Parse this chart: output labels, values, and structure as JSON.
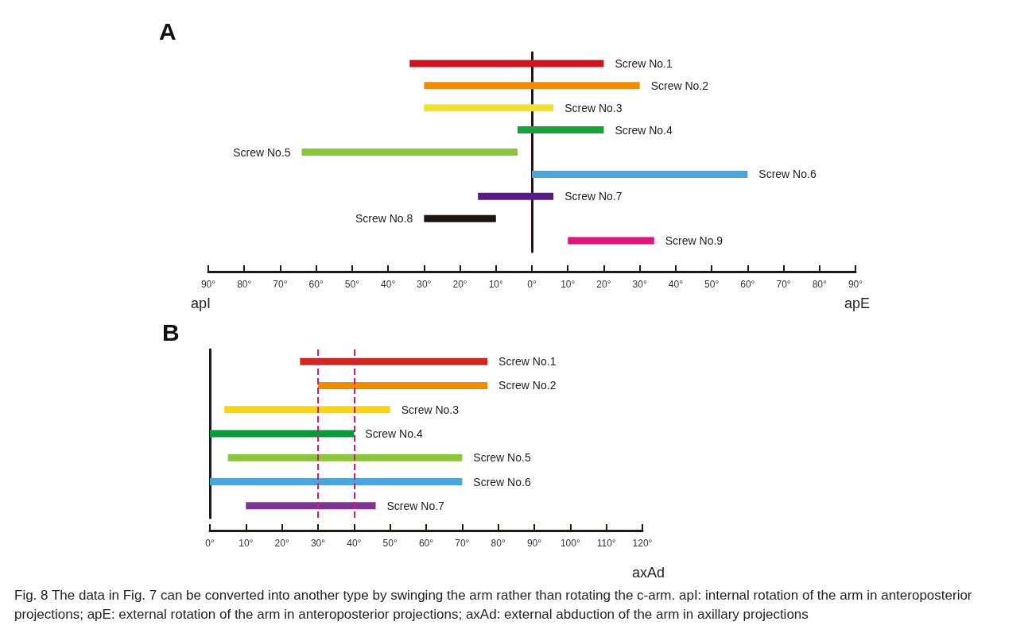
{
  "chart_data": [
    {
      "type": "bar",
      "title": "A",
      "orientation": "horizontal",
      "xlabel": "apE",
      "annotations": [
        "apI"
      ],
      "categories": [
        "Screw No.1",
        "Screw No.2",
        "Screw No.3",
        "Screw No.4",
        "Screw No.5",
        "Screw No.6",
        "Screw No.7",
        "Screw No.8",
        "Screw No.9"
      ],
      "base": [
        -34,
        -30,
        -30,
        -4,
        -64,
        0,
        -15,
        -30,
        10
      ],
      "values": [
        54,
        60,
        36,
        24,
        60,
        60,
        21,
        20,
        24
      ],
      "colors": [
        "#c8171e",
        "#ef8c00",
        "#f0e030",
        "#1aa23a",
        "#8cc43c",
        "#4ba6d8",
        "#5a1a84",
        "#1e1410",
        "#e0147a"
      ],
      "xlim": [
        -90,
        90
      ],
      "xticks": [
        {
          "value": -90,
          "label": "90°"
        },
        {
          "value": -80,
          "label": "80°"
        },
        {
          "value": -70,
          "label": "70°"
        },
        {
          "value": -60,
          "label": "60°"
        },
        {
          "value": -50,
          "label": "50°"
        },
        {
          "value": -40,
          "label": "40°"
        },
        {
          "value": -30,
          "label": "30°"
        },
        {
          "value": -20,
          "label": "20°"
        },
        {
          "value": -10,
          "label": "10°"
        },
        {
          "value": 0,
          "label": "0°"
        },
        {
          "value": 10,
          "label": "10°"
        },
        {
          "value": 20,
          "label": "20°"
        },
        {
          "value": 30,
          "label": "30°"
        },
        {
          "value": 40,
          "label": "40°"
        },
        {
          "value": 50,
          "label": "50°"
        },
        {
          "value": 60,
          "label": "60°"
        },
        {
          "value": 70,
          "label": "70°"
        },
        {
          "value": 80,
          "label": "80°"
        },
        {
          "value": 90,
          "label": "90°"
        }
      ]
    },
    {
      "type": "bar",
      "title": "B",
      "orientation": "horizontal",
      "xlabel": "axAd",
      "annotations": [
        "Fig. 8 The data in Fig. 7 can be converted into another type by swinging the arm rather than rotating the c-arm. apI: internal rotation of the arm in anteroposterior projections; apE: external rotation of the arm in anteroposterior projections; axAd: external abduction of the arm in axillary projections"
      ],
      "categories": [
        "Screw No.1",
        "Screw No.2",
        "Screw No.3",
        "Screw No.4",
        "Screw No.5",
        "Screw No.6",
        "Screw No.7"
      ],
      "base": [
        25,
        30,
        4,
        0,
        5,
        0,
        10
      ],
      "values": [
        52,
        47,
        46,
        40,
        65,
        70,
        36
      ],
      "colors": [
        "#d9231f",
        "#ef8c00",
        "#f8d51a",
        "#0a9a3c",
        "#8cc43c",
        "#4ba6d8",
        "#7d3690"
      ],
      "xlim": [
        0,
        120
      ],
      "xticks": [
        {
          "value": 0,
          "label": "0°"
        },
        {
          "value": 10,
          "label": "10°"
        },
        {
          "value": 20,
          "label": "20°"
        },
        {
          "value": 30,
          "label": "30°"
        },
        {
          "value": 40,
          "label": "40°"
        },
        {
          "value": 50,
          "label": "50°"
        },
        {
          "value": 60,
          "label": "60°"
        },
        {
          "value": 70,
          "label": "70°"
        },
        {
          "value": 80,
          "label": "80°"
        },
        {
          "value": 90,
          "label": "90°"
        },
        {
          "value": 100,
          "label": "100°"
        },
        {
          "value": 110,
          "label": "110°"
        },
        {
          "value": 120,
          "label": "120°"
        }
      ],
      "ref_lines": [
        {
          "axis": "x",
          "value": 30,
          "color": "#e0147a",
          "line_style": "dashed"
        },
        {
          "axis": "x",
          "value": 40,
          "color": "#e0147a",
          "line_style": "dashed"
        }
      ]
    }
  ]
}
